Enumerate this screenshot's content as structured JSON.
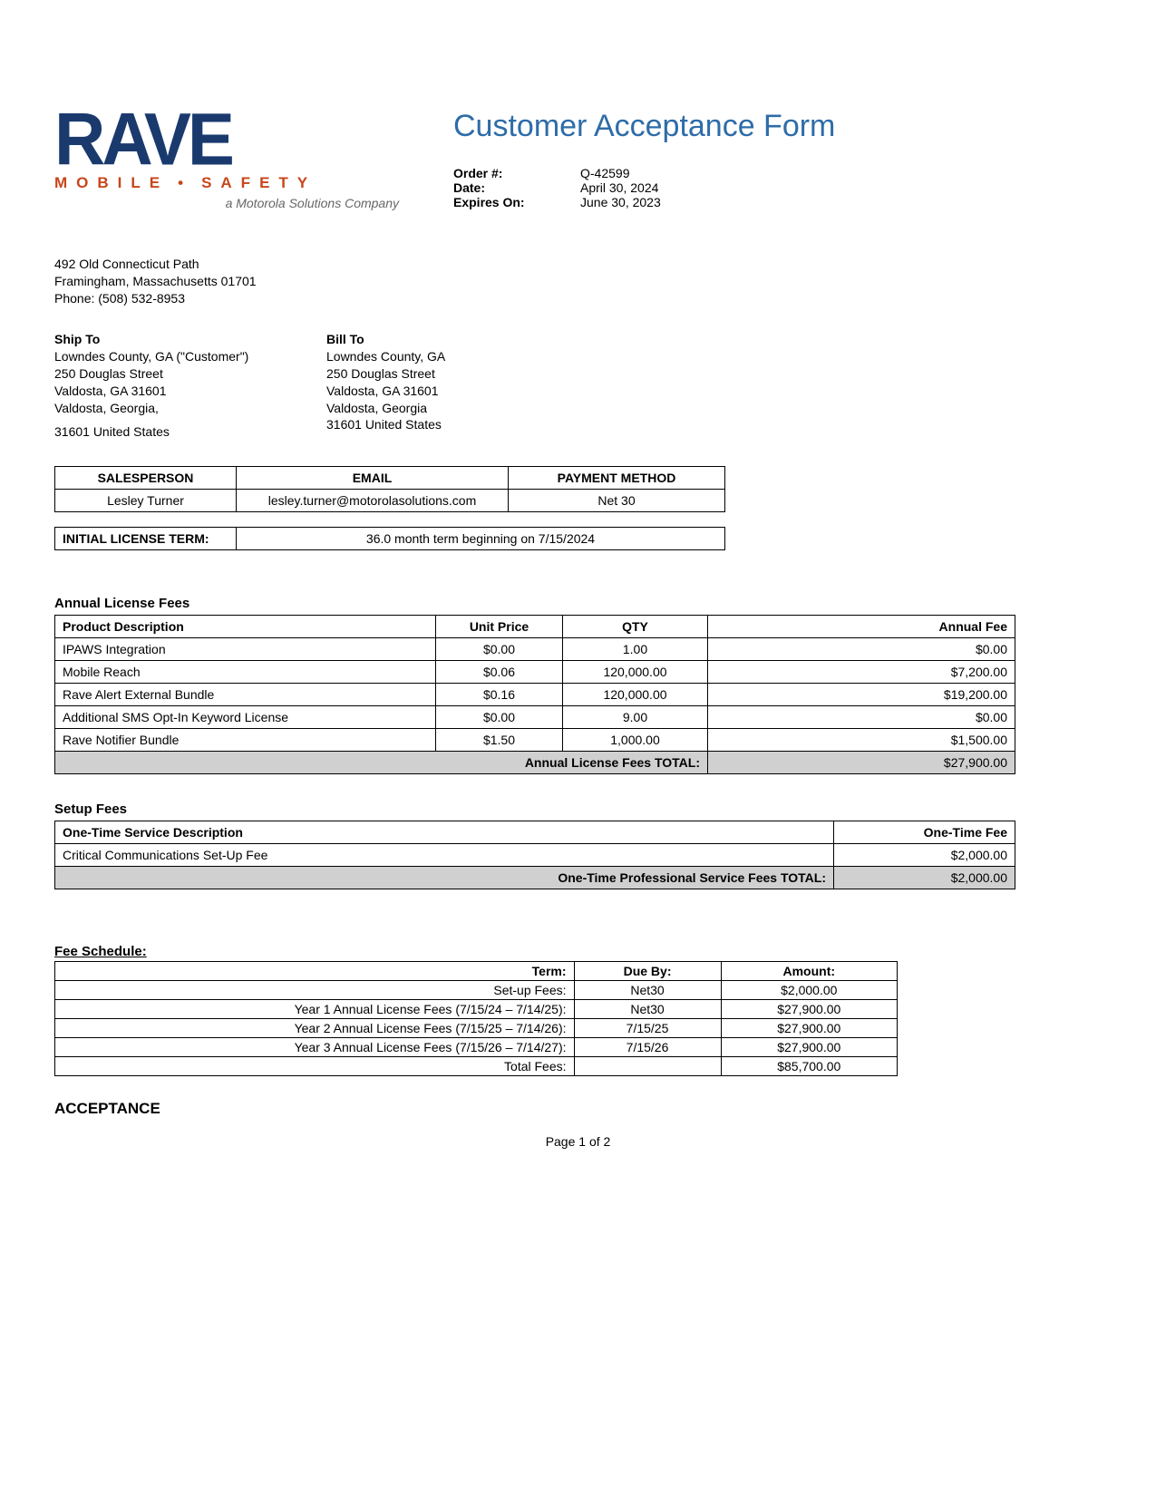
{
  "logo": {
    "main": "RAVE",
    "sub_left": "MOBILE",
    "sub_right": "SAFETY",
    "tag": "a Motorola Solutions Company"
  },
  "title": "Customer Acceptance Form",
  "meta": {
    "order_label": "Order #:",
    "order_value": "Q-42599",
    "date_label": "Date:",
    "date_value": "April 30, 2024",
    "expires_label": "Expires On:",
    "expires_value": "June 30, 2023"
  },
  "company": {
    "line1": "492 Old Connecticut Path",
    "line2": "Framingham, Massachusetts 01701",
    "line3": "Phone: (508) 532-8953"
  },
  "ship": {
    "h": "Ship To",
    "l1": "Lowndes County, GA (\"Customer\")",
    "l2": "250 Douglas Street",
    "l3": "Valdosta, GA 31601",
    "l4": "Valdosta, Georgia,",
    "l5": "31601 United States"
  },
  "bill": {
    "h": "Bill To",
    "l1": "Lowndes County, GA",
    "l2": "250 Douglas Street",
    "l3": "Valdosta, GA 31601",
    "l4": "Valdosta, Georgia",
    "l5": "31601 United States"
  },
  "sp": {
    "h1": "SALESPERSON",
    "h2": "EMAIL",
    "h3": "PAYMENT METHOD",
    "v1": "Lesley Turner",
    "v2": "lesley.turner@motorolasolutions.com",
    "v3": "Net 30"
  },
  "license_term": {
    "label": "INITIAL LICENSE TERM:",
    "value": "36.0 month term beginning on 7/15/2024"
  },
  "annual": {
    "heading": "Annual License Fees",
    "cols": {
      "c1": "Product Description",
      "c2": "Unit Price",
      "c3": "QTY",
      "c4": "Annual Fee"
    },
    "rows": [
      {
        "desc": "IPAWS Integration",
        "unit": "$0.00",
        "qty": "1.00",
        "fee": "$0.00"
      },
      {
        "desc": "Mobile Reach",
        "unit": "$0.06",
        "qty": "120,000.00",
        "fee": "$7,200.00"
      },
      {
        "desc": "Rave Alert External Bundle",
        "unit": "$0.16",
        "qty": "120,000.00",
        "fee": "$19,200.00"
      },
      {
        "desc": "Additional SMS Opt-In Keyword License",
        "unit": "$0.00",
        "qty": "9.00",
        "fee": "$0.00"
      },
      {
        "desc": "Rave Notifier Bundle",
        "unit": "$1.50",
        "qty": "1,000.00",
        "fee": "$1,500.00"
      }
    ],
    "total_label": "Annual License Fees TOTAL:",
    "total_value": "$27,900.00"
  },
  "setup": {
    "heading": "Setup Fees",
    "c1": "One-Time Service Description",
    "c2": "One-Time Fee",
    "rows": [
      {
        "desc": "Critical Communications Set-Up Fee",
        "fee": "$2,000.00"
      }
    ],
    "total_label": "One-Time Professional Service Fees TOTAL:",
    "total_value": "$2,000.00"
  },
  "schedule": {
    "heading": "Fee Schedule:",
    "h1": "Term:",
    "h2": "Due By:",
    "h3": "Amount:",
    "rows": [
      {
        "term": "Set-up Fees:",
        "due": "Net30",
        "amt": "$2,000.00"
      },
      {
        "term": "Year 1 Annual License Fees (7/15/24 – 7/14/25):",
        "due": "Net30",
        "amt": "$27,900.00"
      },
      {
        "term": "Year 2 Annual License Fees (7/15/25 – 7/14/26):",
        "due": "7/15/25",
        "amt": "$27,900.00"
      },
      {
        "term": "Year 3 Annual License Fees (7/15/26 – 7/14/27):",
        "due": "7/15/26",
        "amt": "$27,900.00"
      },
      {
        "term": "Total Fees:",
        "due": "",
        "amt": "$85,700.00"
      }
    ]
  },
  "acceptance": "ACCEPTANCE",
  "page_foot": "Page 1 of 2",
  "colors": {
    "brand_blue": "#1a3a6e",
    "brand_orange": "#c8451a",
    "title_blue": "#2e6ca8",
    "total_bg": "#d0d0d0"
  }
}
